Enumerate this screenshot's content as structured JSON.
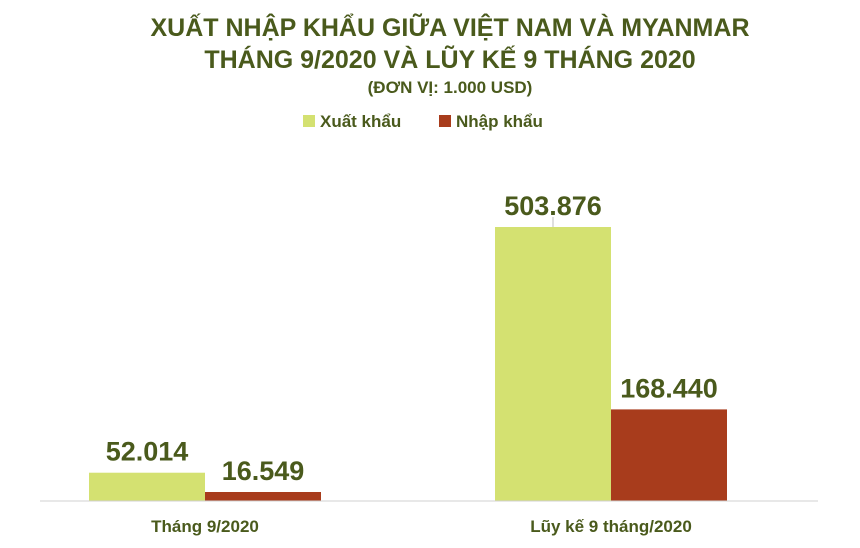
{
  "chart_data": {
    "type": "bar",
    "title_line1": "XUẤT NHẬP KHẨU GIỮA VIỆT NAM VÀ MYANMAR",
    "title_line2": "THÁNG 9/2020 VÀ LŨY KẾ 9 THÁNG 2020",
    "subtitle": "(ĐƠN VỊ: 1.000 USD)",
    "categories": [
      "Tháng 9/2020",
      "Lũy kế 9 tháng/2020"
    ],
    "series": [
      {
        "name": "Xuất khẩu",
        "color": "#d4e171",
        "values": [
          52014,
          503876
        ],
        "labels": [
          "52.014",
          "503.876"
        ]
      },
      {
        "name": "Nhập khẩu",
        "color": "#a83c1c",
        "values": [
          16549,
          168440
        ],
        "labels": [
          "16.549",
          "168.440"
        ]
      }
    ],
    "legend_position": "top",
    "grid": false
  }
}
